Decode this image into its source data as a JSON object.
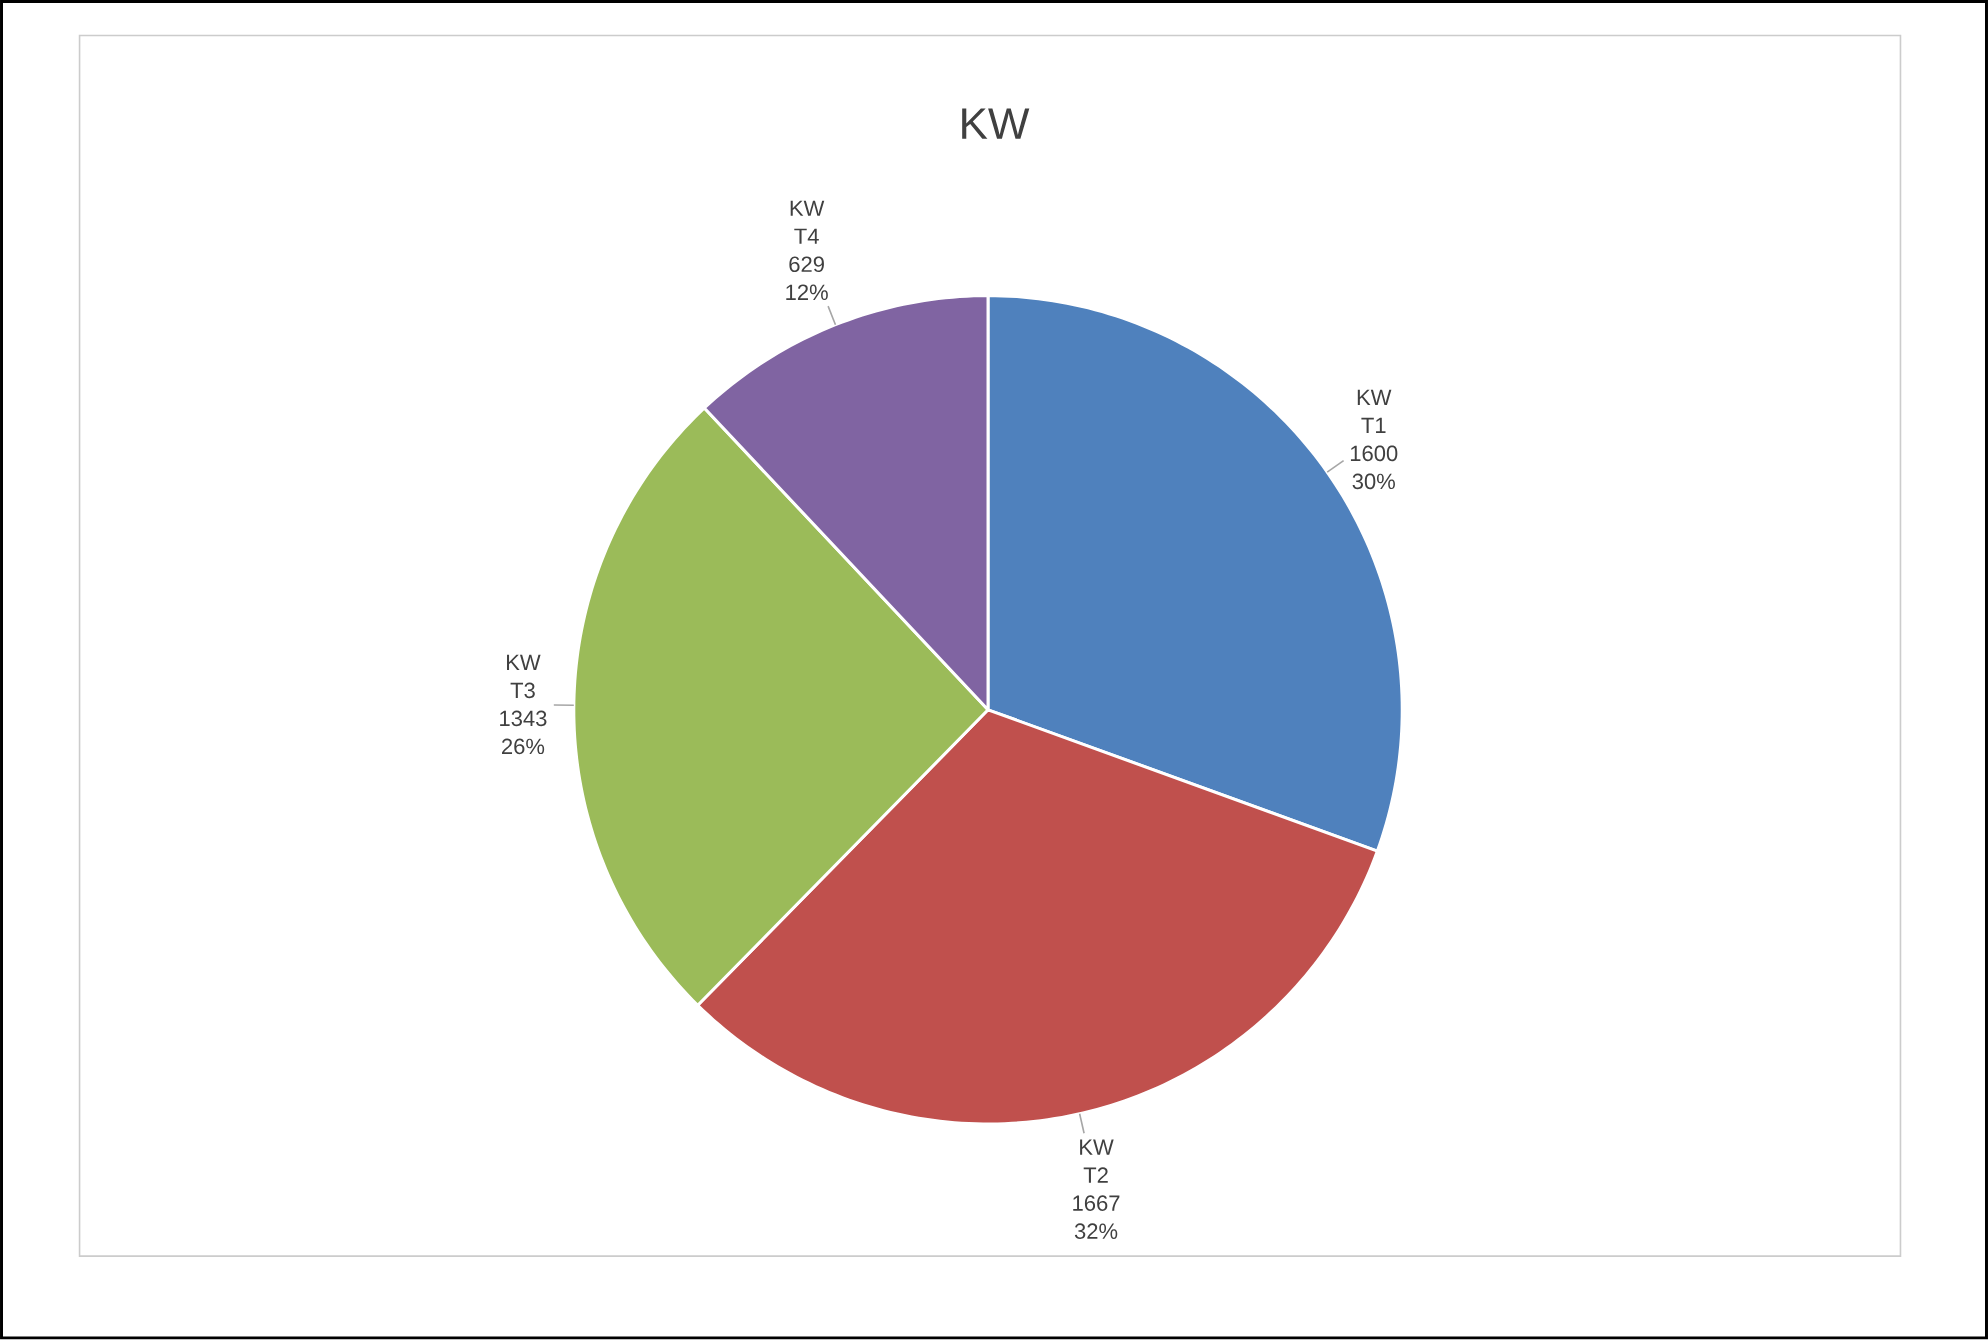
{
  "chart_data": {
    "type": "pie",
    "title": "KW",
    "categories": [
      "T1",
      "T2",
      "T3",
      "T4"
    ],
    "series": [
      {
        "name": "KW",
        "values": [
          1600,
          1667,
          1343,
          629
        ]
      }
    ],
    "colors": [
      "#4f81bd",
      "#c0504d",
      "#9bbb59",
      "#8064a2"
    ],
    "data_labels": true,
    "value_labels": [
      "30%",
      "32%",
      "26%",
      "12%"
    ]
  }
}
